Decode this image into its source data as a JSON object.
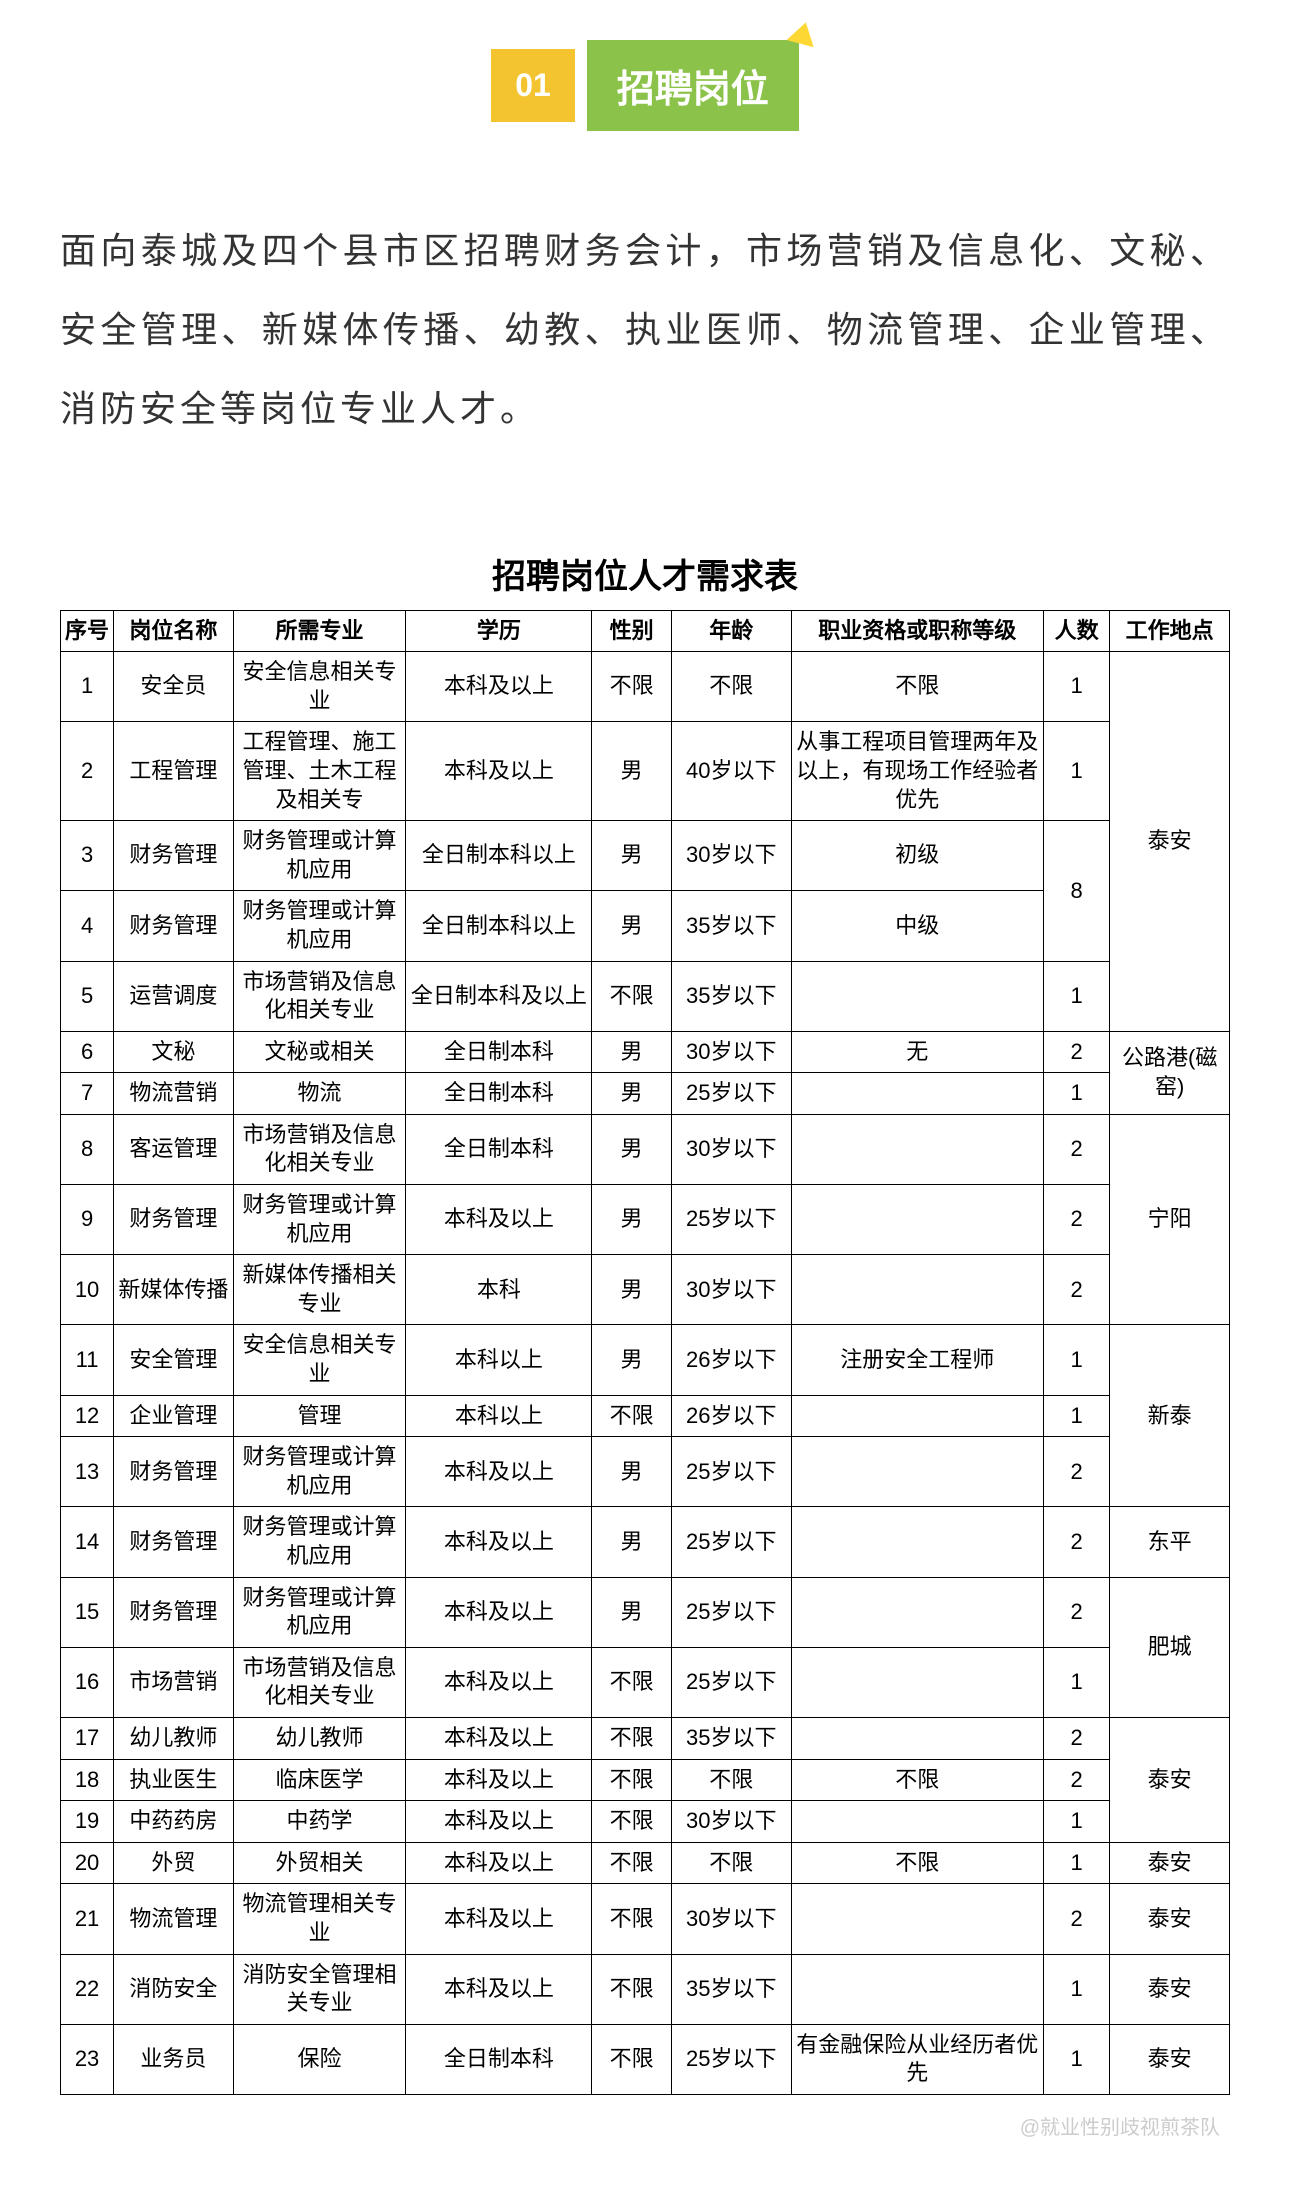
{
  "header": {
    "number": "01",
    "title": "招聘岗位"
  },
  "intro": "面向泰城及四个县市区招聘财务会计，市场营销及信息化、文秘、安全管理、新媒体传播、幼教、执业医师、物流管理、企业管理、消防安全等岗位专业人才。",
  "table": {
    "title": "招聘岗位人才需求表",
    "columns": [
      "序号",
      "岗位名称",
      "所需专业",
      "学历",
      "性别",
      "年龄",
      "职业资格或职称等级",
      "人数",
      "工作地点"
    ],
    "rows": [
      {
        "seq": "1",
        "position": "安全员",
        "major": "安全信息相关专业",
        "edu": "本科及以上",
        "gender": "不限",
        "age": "不限",
        "qual": "不限",
        "count": "1"
      },
      {
        "seq": "2",
        "position": "工程管理",
        "major": "工程管理、施工管理、土木工程及相关专",
        "edu": "本科及以上",
        "gender": "男",
        "age": "40岁以下",
        "qual": "从事工程项目管理两年及以上，有现场工作经验者优先",
        "count": "1"
      },
      {
        "seq": "3",
        "position": "财务管理",
        "major": "财务管理或计算机应用",
        "edu": "全日制本科以上",
        "gender": "男",
        "age": "30岁以下",
        "qual": "初级"
      },
      {
        "seq": "4",
        "position": "财务管理",
        "major": "财务管理或计算机应用",
        "edu": "全日制本科以上",
        "gender": "男",
        "age": "35岁以下",
        "qual": "中级"
      },
      {
        "seq": "5",
        "position": "运营调度",
        "major": "市场营销及信息化相关专业",
        "edu": "全日制本科及以上",
        "gender": "不限",
        "age": "35岁以下",
        "qual": "",
        "count": "1"
      },
      {
        "seq": "6",
        "position": "文秘",
        "major": "文秘或相关",
        "edu": "全日制本科",
        "gender": "男",
        "age": "30岁以下",
        "qual": "无",
        "count": "2"
      },
      {
        "seq": "7",
        "position": "物流营销",
        "major": "物流",
        "edu": "全日制本科",
        "gender": "男",
        "age": "25岁以下",
        "qual": "",
        "count": "1"
      },
      {
        "seq": "8",
        "position": "客运管理",
        "major": "市场营销及信息化相关专业",
        "edu": "全日制本科",
        "gender": "男",
        "age": "30岁以下",
        "qual": "",
        "count": "2"
      },
      {
        "seq": "9",
        "position": "财务管理",
        "major": "财务管理或计算机应用",
        "edu": "本科及以上",
        "gender": "男",
        "age": "25岁以下",
        "qual": "",
        "count": "2"
      },
      {
        "seq": "10",
        "position": "新媒体传播",
        "major": "新媒体传播相关专业",
        "edu": "本科",
        "gender": "男",
        "age": "30岁以下",
        "qual": "",
        "count": "2"
      },
      {
        "seq": "11",
        "position": "安全管理",
        "major": "安全信息相关专业",
        "edu": "本科以上",
        "gender": "男",
        "age": "26岁以下",
        "qual": "注册安全工程师",
        "count": "1"
      },
      {
        "seq": "12",
        "position": "企业管理",
        "major": "管理",
        "edu": "本科以上",
        "gender": "不限",
        "age": "26岁以下",
        "qual": "",
        "count": "1"
      },
      {
        "seq": "13",
        "position": "财务管理",
        "major": "财务管理或计算机应用",
        "edu": "本科及以上",
        "gender": "男",
        "age": "25岁以下",
        "qual": "",
        "count": "2"
      },
      {
        "seq": "14",
        "position": "财务管理",
        "major": "财务管理或计算机应用",
        "edu": "本科及以上",
        "gender": "男",
        "age": "25岁以下",
        "qual": "",
        "count": "2"
      },
      {
        "seq": "15",
        "position": "财务管理",
        "major": "财务管理或计算机应用",
        "edu": "本科及以上",
        "gender": "男",
        "age": "25岁以下",
        "qual": "",
        "count": "2"
      },
      {
        "seq": "16",
        "position": "市场营销",
        "major": "市场营销及信息化相关专业",
        "edu": "本科及以上",
        "gender": "不限",
        "age": "25岁以下",
        "qual": "",
        "count": "1"
      },
      {
        "seq": "17",
        "position": "幼儿教师",
        "major": "幼儿教师",
        "edu": "本科及以上",
        "gender": "不限",
        "age": "35岁以下",
        "qual": "",
        "count": "2"
      },
      {
        "seq": "18",
        "position": "执业医生",
        "major": "临床医学",
        "edu": "本科及以上",
        "gender": "不限",
        "age": "不限",
        "qual": "不限",
        "count": "2"
      },
      {
        "seq": "19",
        "position": "中药药房",
        "major": "中药学",
        "edu": "本科及以上",
        "gender": "不限",
        "age": "30岁以下",
        "qual": "",
        "count": "1"
      },
      {
        "seq": "20",
        "position": "外贸",
        "major": "外贸相关",
        "edu": "本科及以上",
        "gender": "不限",
        "age": "不限",
        "qual": "不限",
        "count": "1"
      },
      {
        "seq": "21",
        "position": "物流管理",
        "major": "物流管理相关专业",
        "edu": "本科及以上",
        "gender": "不限",
        "age": "30岁以下",
        "qual": "",
        "count": "2"
      },
      {
        "seq": "22",
        "position": "消防安全",
        "major": "消防安全管理相关专业",
        "edu": "本科及以上",
        "gender": "不限",
        "age": "35岁以下",
        "qual": "",
        "count": "1"
      },
      {
        "seq": "23",
        "position": "业务员",
        "major": "保险",
        "edu": "全日制本科",
        "gender": "不限",
        "age": "25岁以下",
        "qual": "有金融保险从业经历者优先",
        "count": "1"
      }
    ],
    "merged_count_34": "8",
    "locations": {
      "taian1": "泰安",
      "gonglu": "公路港(磁窑)",
      "ningyang": "宁阳",
      "xintai": "新泰",
      "dongping": "东平",
      "feicheng": "肥城",
      "taian2": "泰安",
      "taian3": "泰安",
      "taian4": "泰安",
      "taian5": "泰安",
      "taian6": "泰安"
    }
  },
  "watermark": "@就业性别歧视煎茶队",
  "styling": {
    "number_bg": "#f4c430",
    "title_bg": "#8bc34a",
    "text_color": "#333333",
    "border_color": "#000000"
  }
}
